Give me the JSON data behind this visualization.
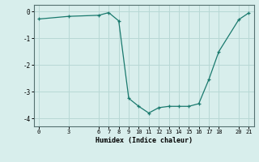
{
  "x": [
    0,
    3,
    6,
    7,
    8,
    9,
    10,
    11,
    12,
    13,
    14,
    15,
    16,
    17,
    18,
    20,
    21
  ],
  "y": [
    -0.28,
    -0.18,
    -0.14,
    -0.04,
    -0.35,
    -3.25,
    -3.55,
    -3.8,
    -3.6,
    -3.55,
    -3.55,
    -3.55,
    -3.45,
    -2.55,
    -1.5,
    -0.3,
    -0.05
  ],
  "xticks": [
    0,
    3,
    6,
    7,
    8,
    9,
    10,
    11,
    12,
    13,
    14,
    15,
    16,
    17,
    18,
    20,
    21
  ],
  "yticks": [
    0,
    -1,
    -2,
    -3,
    -4
  ],
  "xlabel": "Humidex (Indice chaleur)",
  "line_color": "#1a7a6e",
  "bg_color": "#d8eeec",
  "grid_color": "#b8d8d5",
  "xlim": [
    -0.5,
    21.5
  ],
  "ylim": [
    -4.3,
    0.25
  ]
}
